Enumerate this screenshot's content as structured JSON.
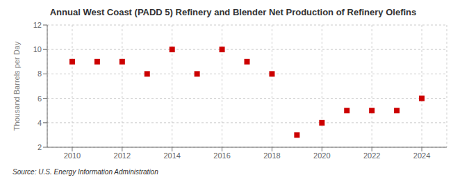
{
  "chart_data": {
    "type": "scatter",
    "title": "Annual West Coast (PADD 5) Refinery and Blender Net Production of Refinery Olefins",
    "ylabel": "Thousand Barrels per Day",
    "source": "Source: U.S. Energy Information Administration",
    "x": [
      2010,
      2011,
      2012,
      2013,
      2014,
      2015,
      2016,
      2017,
      2018,
      2019,
      2020,
      2021,
      2022,
      2023,
      2024
    ],
    "values": [
      9,
      9,
      9,
      8,
      10,
      8,
      10,
      9,
      8,
      3,
      4,
      5,
      5,
      5,
      6
    ],
    "color": "#cc0000",
    "marker": "square",
    "xlim": [
      2009.0,
      2025.0
    ],
    "ylim": [
      2,
      12
    ],
    "xticks": [
      2010,
      2012,
      2014,
      2016,
      2018,
      2020,
      2022,
      2024
    ],
    "yticks": [
      2,
      4,
      6,
      8,
      10,
      12
    ],
    "grid": true
  }
}
